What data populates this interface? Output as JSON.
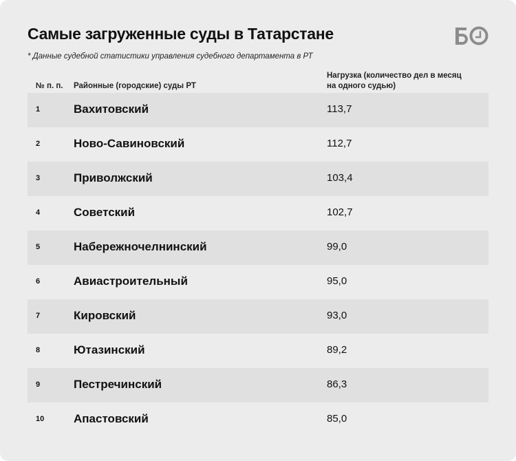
{
  "title": "Самые загруженные суды в Татарстане",
  "note": "* Данные судебной статистики управления судебного департамента в РТ",
  "logo": {
    "text": "БО",
    "icon": "clock-icon",
    "color": "#8c8c8c"
  },
  "headers": {
    "number": "№ п. п.",
    "court": "Районные (городские) суды РТ",
    "load_line1": "Нагрузка (количество дел в месяц",
    "load_line2": "на одного судью)"
  },
  "rows": [
    {
      "n": "1",
      "court": "Вахитовский",
      "load": "113,7"
    },
    {
      "n": "2",
      "court": "Ново-Савиновский",
      "load": "112,7"
    },
    {
      "n": "3",
      "court": "Приволжский",
      "load": "103,4"
    },
    {
      "n": "4",
      "court": "Советский",
      "load": "102,7"
    },
    {
      "n": "5",
      "court": "Набережночелнинский",
      "load": "99,0"
    },
    {
      "n": "6",
      "court": "Авиастроительный",
      "load": "95,0"
    },
    {
      "n": "7",
      "court": "Кировский",
      "load": "93,0"
    },
    {
      "n": "8",
      "court": "Ютазинский",
      "load": "89,2"
    },
    {
      "n": "9",
      "court": "Пестречинский",
      "load": "86,3"
    },
    {
      "n": "10",
      "court": "Апастовский",
      "load": "85,0"
    }
  ],
  "colors": {
    "background": "#ececec",
    "stripe": "#e0e0e0"
  }
}
